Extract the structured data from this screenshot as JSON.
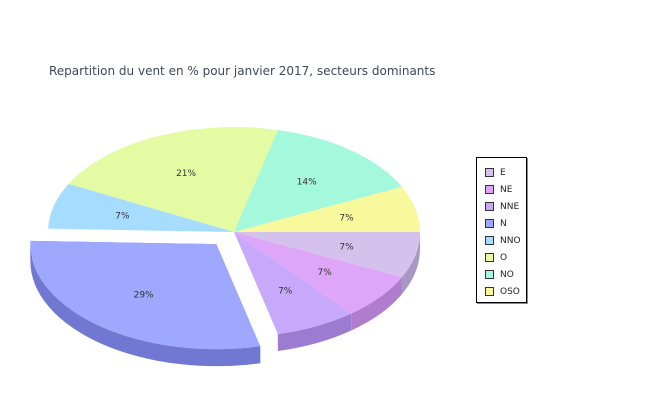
{
  "chart_data": {
    "type": "pie",
    "title": "Repartition du vent en % pour janvier 2017, secteurs dominants",
    "slices": [
      {
        "name": "E",
        "value": 7,
        "label": "7%",
        "color": "#d4c2ec",
        "side": "#a898c4"
      },
      {
        "name": "NE",
        "value": 7,
        "label": "7%",
        "color": "#dea6f8",
        "side": "#b07ccc"
      },
      {
        "name": "NNE",
        "value": 7,
        "label": "7%",
        "color": "#c8a8fa",
        "side": "#9c7cd0"
      },
      {
        "name": "N",
        "value": 29,
        "label": "29%",
        "color": "#9ea8ff",
        "side": "#7078d2",
        "exploded": true
      },
      {
        "name": "NNO",
        "value": 7,
        "label": "7%",
        "color": "#a6dcff",
        "side": "#74abd4"
      },
      {
        "name": "O",
        "value": 21,
        "label": "21%",
        "color": "#e4fba4",
        "side": "#b2c87a"
      },
      {
        "name": "NO",
        "value": 14,
        "label": "14%",
        "color": "#a4f8dc",
        "side": "#74c6aa"
      },
      {
        "name": "OSO",
        "value": 7,
        "label": "7%",
        "color": "#f8f89c",
        "side": "#c8c870"
      }
    ],
    "legend_position": "right"
  }
}
